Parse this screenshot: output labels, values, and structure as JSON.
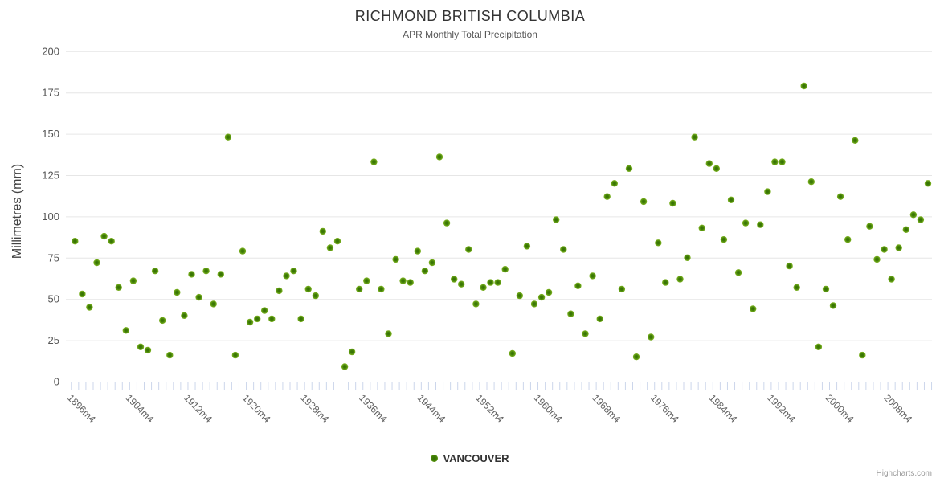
{
  "header": {
    "title": "RICHMOND BRITISH COLUMBIA",
    "subtitle": "APR Monthly Total Precipitation"
  },
  "legend": {
    "series_label": "VANCOUVER"
  },
  "credits": {
    "label": "Highcharts.com"
  },
  "chart_data": {
    "type": "scatter",
    "title": "RICHMOND BRITISH COLUMBIA",
    "subtitle": "APR Monthly Total Precipitation",
    "ylabel": "Millimetres (mm)",
    "ylim": [
      0,
      200
    ],
    "yticks": [
      0,
      25,
      50,
      75,
      100,
      125,
      150,
      175,
      200
    ],
    "grid": "horizontal-only",
    "legend_position": "bottom-center",
    "marker_outer_color": "#80b622",
    "marker_inner_color": "#3f7d06",
    "axis_line_color": "#ccd6eb",
    "grid_color": "#e6e6e6",
    "xticks": [
      {
        "year": 1896,
        "label": "1896m4"
      },
      {
        "year": 1904,
        "label": "1904m4"
      },
      {
        "year": 1912,
        "label": "1912m4"
      },
      {
        "year": 1920,
        "label": "1920m4"
      },
      {
        "year": 1928,
        "label": "1928m4"
      },
      {
        "year": 1936,
        "label": "1936m4"
      },
      {
        "year": 1944,
        "label": "1944m4"
      },
      {
        "year": 1952,
        "label": "1952m4"
      },
      {
        "year": 1960,
        "label": "1960m4"
      },
      {
        "year": 1968,
        "label": "1968m4"
      },
      {
        "year": 1976,
        "label": "1976m4"
      },
      {
        "year": 1984,
        "label": "1984m4"
      },
      {
        "year": 1992,
        "label": "1992m4"
      },
      {
        "year": 2000,
        "label": "2000m4"
      },
      {
        "year": 2008,
        "label": "2008m4"
      }
    ],
    "series": [
      {
        "name": "VANCOUVER",
        "color": "#80b622",
        "points": [
          [
            1896,
            85
          ],
          [
            1897,
            53
          ],
          [
            1898,
            45
          ],
          [
            1899,
            72
          ],
          [
            1900,
            88
          ],
          [
            1901,
            85
          ],
          [
            1902,
            57
          ],
          [
            1903,
            31
          ],
          [
            1904,
            61
          ],
          [
            1905,
            21
          ],
          [
            1906,
            19
          ],
          [
            1907,
            67
          ],
          [
            1908,
            37
          ],
          [
            1909,
            16
          ],
          [
            1910,
            54
          ],
          [
            1911,
            40
          ],
          [
            1912,
            65
          ],
          [
            1913,
            51
          ],
          [
            1914,
            67
          ],
          [
            1915,
            47
          ],
          [
            1916,
            65
          ],
          [
            1917,
            148
          ],
          [
            1918,
            16
          ],
          [
            1919,
            79
          ],
          [
            1920,
            36
          ],
          [
            1921,
            38
          ],
          [
            1922,
            43
          ],
          [
            1923,
            38
          ],
          [
            1924,
            55
          ],
          [
            1925,
            64
          ],
          [
            1926,
            67
          ],
          [
            1927,
            38
          ],
          [
            1928,
            56
          ],
          [
            1929,
            52
          ],
          [
            1930,
            91
          ],
          [
            1931,
            81
          ],
          [
            1932,
            85
          ],
          [
            1933,
            9
          ],
          [
            1934,
            18
          ],
          [
            1935,
            56
          ],
          [
            1936,
            61
          ],
          [
            1937,
            133
          ],
          [
            1938,
            56
          ],
          [
            1939,
            29
          ],
          [
            1940,
            74
          ],
          [
            1941,
            61
          ],
          [
            1942,
            60
          ],
          [
            1943,
            79
          ],
          [
            1944,
            67
          ],
          [
            1945,
            72
          ],
          [
            1946,
            136
          ],
          [
            1947,
            96
          ],
          [
            1948,
            62
          ],
          [
            1949,
            59
          ],
          [
            1950,
            80
          ],
          [
            1951,
            47
          ],
          [
            1952,
            57
          ],
          [
            1953,
            60
          ],
          [
            1954,
            60
          ],
          [
            1955,
            68
          ],
          [
            1956,
            17
          ],
          [
            1957,
            52
          ],
          [
            1958,
            82
          ],
          [
            1959,
            47
          ],
          [
            1960,
            51
          ],
          [
            1961,
            54
          ],
          [
            1962,
            98
          ],
          [
            1963,
            80
          ],
          [
            1964,
            41
          ],
          [
            1965,
            58
          ],
          [
            1966,
            29
          ],
          [
            1967,
            64
          ],
          [
            1968,
            38
          ],
          [
            1969,
            112
          ],
          [
            1970,
            120
          ],
          [
            1971,
            56
          ],
          [
            1972,
            129
          ],
          [
            1973,
            15
          ],
          [
            1974,
            109
          ],
          [
            1975,
            27
          ],
          [
            1976,
            84
          ],
          [
            1977,
            60
          ],
          [
            1978,
            108
          ],
          [
            1979,
            62
          ],
          [
            1980,
            75
          ],
          [
            1981,
            148
          ],
          [
            1982,
            93
          ],
          [
            1983,
            132
          ],
          [
            1984,
            129
          ],
          [
            1985,
            86
          ],
          [
            1986,
            110
          ],
          [
            1987,
            66
          ],
          [
            1988,
            96
          ],
          [
            1989,
            44
          ],
          [
            1990,
            95
          ],
          [
            1991,
            115
          ],
          [
            1992,
            133
          ],
          [
            1993,
            133
          ],
          [
            1994,
            70
          ],
          [
            1995,
            57
          ],
          [
            1996,
            179
          ],
          [
            1997,
            121
          ],
          [
            1998,
            21
          ],
          [
            1999,
            56
          ],
          [
            2000,
            46
          ],
          [
            2001,
            112
          ],
          [
            2002,
            86
          ],
          [
            2003,
            146
          ],
          [
            2004,
            16
          ],
          [
            2005,
            94
          ],
          [
            2006,
            74
          ],
          [
            2007,
            80
          ],
          [
            2008,
            62
          ],
          [
            2009,
            81
          ],
          [
            2010,
            92
          ],
          [
            2011,
            101
          ],
          [
            2012,
            98
          ],
          [
            2013,
            120
          ]
        ]
      }
    ]
  }
}
